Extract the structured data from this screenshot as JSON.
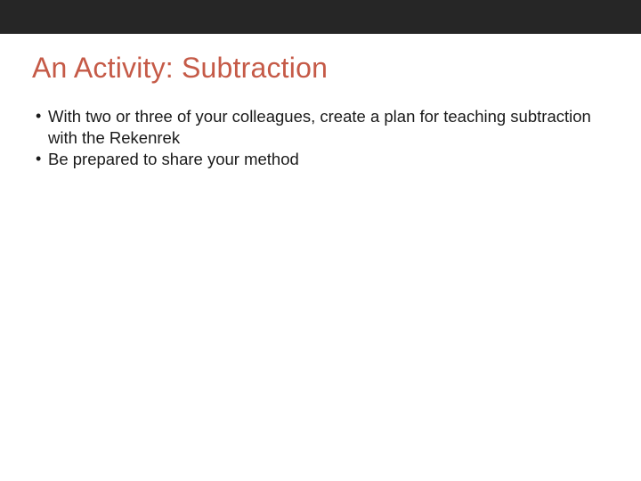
{
  "slide": {
    "title": "An Activity:  Subtraction",
    "title_color": "#c55a47",
    "title_fontsize": 32,
    "body_fontsize": 18.5,
    "body_color": "#1a1a1a",
    "background_color": "#ffffff",
    "top_bar_color": "#262626",
    "top_bar_height": 38,
    "bullets": [
      {
        "text": "With two or three of your colleagues, create a plan for teaching subtraction with the Rekenrek"
      },
      {
        "text": "Be prepared to share your method"
      }
    ]
  }
}
